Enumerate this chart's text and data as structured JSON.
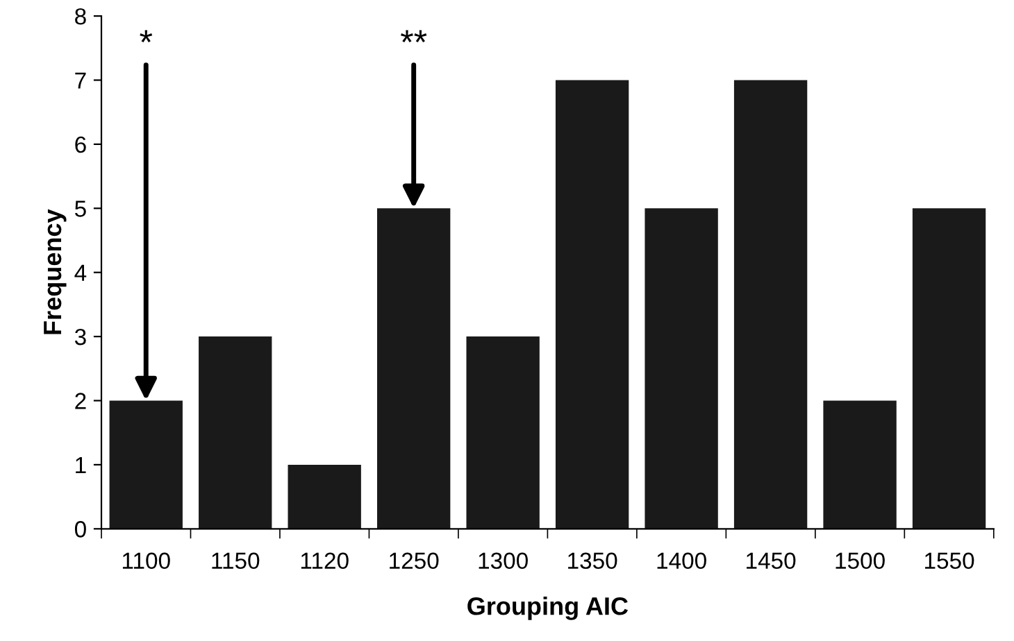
{
  "chart_data": {
    "type": "bar",
    "xlabel": "Grouping AIC",
    "ylabel": "Frequency",
    "categories": [
      "1100",
      "1150",
      "1120",
      "1250",
      "1300",
      "1350",
      "1400",
      "1450",
      "1500",
      "1550"
    ],
    "values": [
      2,
      3,
      1,
      5,
      3,
      7,
      5,
      7,
      2,
      5
    ],
    "color": "#1a1a1a",
    "ylim": [
      0,
      8
    ],
    "yticks": [
      0,
      1,
      2,
      3,
      4,
      5,
      6,
      7,
      8
    ],
    "grid": false,
    "legend": false,
    "annotations": [
      {
        "text": "*",
        "x": "1100",
        "y": 2
      },
      {
        "text": "**",
        "x": "1250",
        "y": 5
      }
    ]
  }
}
